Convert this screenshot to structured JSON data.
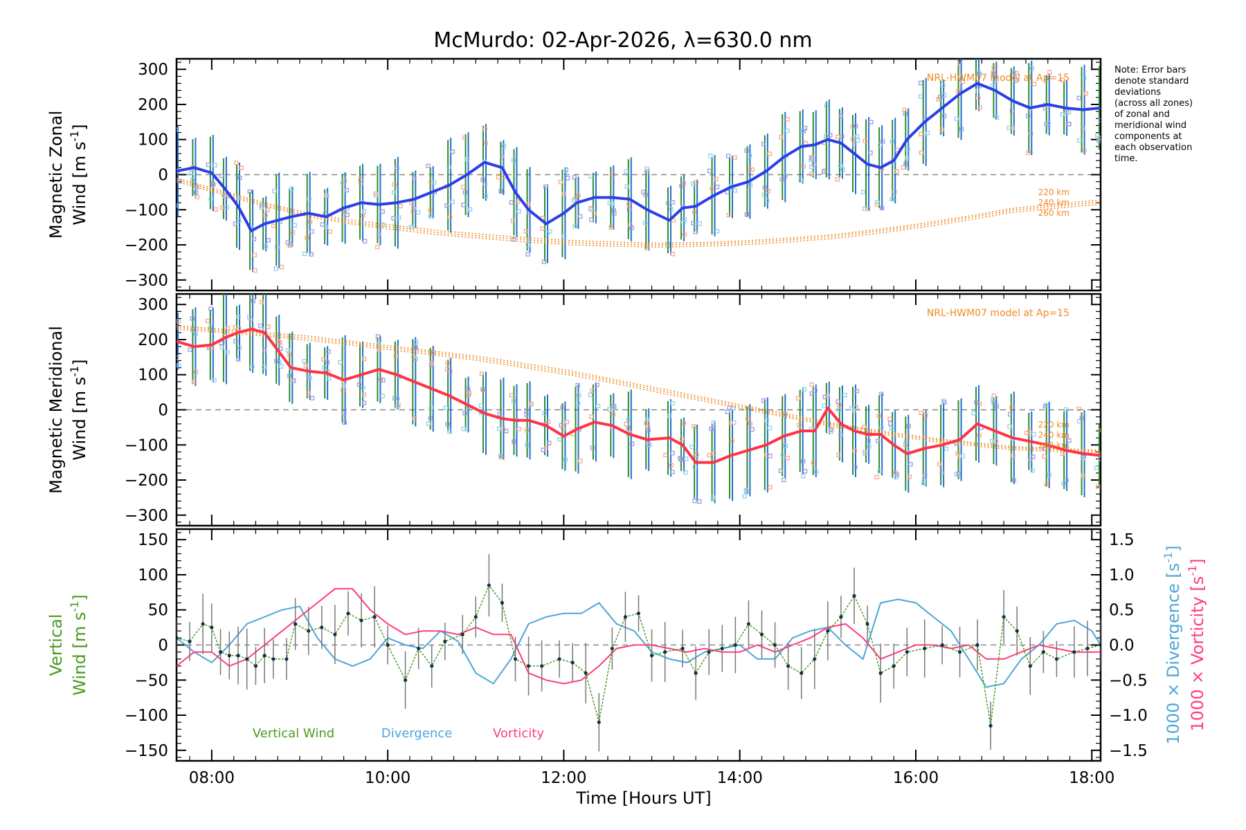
{
  "title": "McMurdo: 02-Apr-2026, λ=630.0 nm",
  "note": "Note: Error bars\ndenote standard\ndeviations\n(across all zones)\nof zonal and\nmeridional wind\ncomponents at\neach observation\ntime.",
  "xlabel": "Time [Hours UT]",
  "colors": {
    "zonal": "#2a3fe8",
    "meridional": "#ff3344",
    "model": "#f08a24",
    "vertical": "#4a9a1e",
    "divergence": "#4ba7d8",
    "vorticity": "#ff3c7d",
    "scatter": "#9a9ae0",
    "errbar_blue": "#1f6fd1",
    "errbar_green": "#2f8a2f",
    "zero": "#888888"
  },
  "chart_data": [
    {
      "type": "line",
      "name": "zonal",
      "ylabel_line1": "Magnetic Zonal",
      "ylabel_line2": "Wind [m s",
      "ylabel_sup": "-1",
      "ylabel_close": "]",
      "ylim": [
        -330,
        330
      ],
      "yticks": [
        -300,
        -200,
        -100,
        0,
        100,
        200,
        300
      ],
      "xlim": [
        7.6,
        18.1
      ],
      "xticks_labels": [
        "08:00",
        "10:00",
        "12:00",
        "14:00",
        "16:00",
        "18:00"
      ],
      "model_label": "NRL-HWM07 model at Ap=15",
      "model_heights": [
        "220 km",
        "240 km",
        "260 km"
      ],
      "series_name": "Magnetic Zonal Wind",
      "x": [
        7.6,
        7.8,
        8.0,
        8.15,
        8.3,
        8.45,
        8.6,
        8.75,
        8.9,
        9.1,
        9.3,
        9.5,
        9.7,
        9.9,
        10.1,
        10.3,
        10.5,
        10.7,
        10.9,
        11.1,
        11.3,
        11.45,
        11.6,
        11.8,
        12.0,
        12.15,
        12.35,
        12.55,
        12.75,
        12.95,
        13.2,
        13.35,
        13.5,
        13.7,
        13.9,
        14.1,
        14.3,
        14.5,
        14.7,
        14.85,
        15.0,
        15.15,
        15.3,
        15.45,
        15.6,
        15.75,
        15.9,
        16.1,
        16.3,
        16.5,
        16.7,
        16.9,
        17.1,
        17.3,
        17.5,
        17.7,
        17.9,
        18.1
      ],
      "values": [
        10,
        20,
        5,
        -40,
        -90,
        -160,
        -140,
        -130,
        -120,
        -110,
        -120,
        -95,
        -80,
        -85,
        -80,
        -70,
        -50,
        -30,
        0,
        35,
        20,
        -50,
        -100,
        -140,
        -110,
        -80,
        -65,
        -65,
        -70,
        -100,
        -130,
        -95,
        -90,
        -60,
        -35,
        -20,
        10,
        50,
        80,
        85,
        100,
        90,
        60,
        30,
        20,
        40,
        100,
        150,
        190,
        230,
        260,
        240,
        210,
        190,
        200,
        190,
        185,
        190
      ],
      "model": [
        [
          -10,
          -45,
          -80,
          -110,
          -130,
          -145,
          -160,
          -170,
          -180,
          -188,
          -192,
          -195,
          -193,
          -188,
          -180,
          -170,
          -155,
          -138,
          -118,
          -96,
          -72
        ],
        [
          -15,
          -50,
          -85,
          -115,
          -136,
          -151,
          -166,
          -176,
          -186,
          -194,
          -198,
          -200,
          -198,
          -193,
          -185,
          -175,
          -160,
          -143,
          -123,
          -101,
          -78
        ],
        [
          -20,
          -55,
          -90,
          -120,
          -141,
          -157,
          -172,
          -182,
          -192,
          -200,
          -204,
          -206,
          -204,
          -199,
          -191,
          -181,
          -166,
          -149,
          -129,
          -107,
          -84
        ]
      ],
      "model_x": [
        7.6,
        8.1,
        8.6,
        9.1,
        9.6,
        10.1,
        10.6,
        11.1,
        11.6,
        12.1,
        12.6,
        13.1,
        13.6,
        14.1,
        14.6,
        15.1,
        15.6,
        16.1,
        16.6,
        17.1,
        18.1
      ]
    },
    {
      "type": "line",
      "name": "meridional",
      "ylabel_line1": "Magnetic Meridional",
      "ylabel_line2": "Wind [m s",
      "ylabel_sup": "-1",
      "ylabel_close": "]",
      "ylim": [
        -330,
        330
      ],
      "yticks": [
        -300,
        -200,
        -100,
        0,
        100,
        200,
        300
      ],
      "xlim": [
        7.6,
        18.1
      ],
      "model_label": "NRL-HWM07 model at Ap=15",
      "model_heights": [
        "220 km",
        "240 km",
        "260 km"
      ],
      "series_name": "Magnetic Meridional Wind",
      "x": [
        7.6,
        7.8,
        8.0,
        8.15,
        8.3,
        8.45,
        8.6,
        8.75,
        8.9,
        9.1,
        9.3,
        9.5,
        9.7,
        9.9,
        10.1,
        10.3,
        10.5,
        10.7,
        10.9,
        11.1,
        11.3,
        11.45,
        11.6,
        11.8,
        12.0,
        12.15,
        12.35,
        12.55,
        12.75,
        12.95,
        13.2,
        13.35,
        13.5,
        13.7,
        13.9,
        14.1,
        14.3,
        14.5,
        14.7,
        14.85,
        15.0,
        15.15,
        15.3,
        15.45,
        15.6,
        15.75,
        15.9,
        16.1,
        16.3,
        16.5,
        16.7,
        16.9,
        17.1,
        17.3,
        17.5,
        17.7,
        17.9,
        18.1
      ],
      "values": [
        195,
        180,
        185,
        205,
        220,
        230,
        220,
        170,
        120,
        110,
        105,
        85,
        100,
        115,
        100,
        80,
        60,
        40,
        15,
        -10,
        -25,
        -30,
        -30,
        -45,
        -75,
        -55,
        -35,
        -45,
        -70,
        -85,
        -80,
        -100,
        -150,
        -150,
        -130,
        -115,
        -100,
        -75,
        -60,
        -60,
        5,
        -40,
        -60,
        -70,
        -70,
        -100,
        -125,
        -110,
        -100,
        -85,
        -40,
        -60,
        -80,
        -90,
        -100,
        -115,
        -125,
        -130
      ],
      "model": [
        [
          240,
          230,
          220,
          210,
          195,
          180,
          165,
          150,
          130,
          110,
          85,
          60,
          35,
          10,
          -15,
          -40,
          -60,
          -78,
          -92,
          -105,
          -115
        ],
        [
          235,
          225,
          215,
          204,
          190,
          175,
          160,
          144,
          124,
          104,
          80,
          54,
          30,
          5,
          -20,
          -44,
          -64,
          -82,
          -96,
          -109,
          -118
        ],
        [
          230,
          220,
          210,
          198,
          184,
          169,
          154,
          138,
          118,
          98,
          74,
          48,
          24,
          0,
          -25,
          -49,
          -69,
          -87,
          -101,
          -114,
          -122
        ]
      ],
      "model_x": [
        7.6,
        8.1,
        8.6,
        9.1,
        9.6,
        10.1,
        10.6,
        11.1,
        11.6,
        12.1,
        12.6,
        13.1,
        13.6,
        14.1,
        14.6,
        15.1,
        15.6,
        16.1,
        16.6,
        17.1,
        18.1
      ]
    },
    {
      "type": "line",
      "name": "vertical",
      "ylabel_line1": "Vertical",
      "ylabel_line2": "Wind [m s",
      "ylabel_sup": "-1",
      "ylabel_close": "]",
      "y2label_div": "1000 × Divergence [s",
      "y2label_vort": "1000 × Vorticity [s",
      "ylim": [
        -165,
        165
      ],
      "yticks": [
        -150,
        -100,
        -50,
        0,
        50,
        100,
        150
      ],
      "y2lim": [
        -1.65,
        1.65
      ],
      "y2ticks": [
        -1.5,
        -1.0,
        -0.5,
        0.0,
        0.5,
        1.0,
        1.5
      ],
      "legend": [
        "Vertical Wind",
        "Divergence",
        "Vorticity"
      ],
      "series": [
        {
          "name": "Vertical Wind",
          "x": [
            7.6,
            7.75,
            7.9,
            8.0,
            8.1,
            8.2,
            8.3,
            8.4,
            8.5,
            8.6,
            8.7,
            8.85,
            8.95,
            9.1,
            9.25,
            9.4,
            9.55,
            9.7,
            9.85,
            10.0,
            10.2,
            10.35,
            10.5,
            10.65,
            10.85,
            11.0,
            11.15,
            11.3,
            11.45,
            11.6,
            11.75,
            11.95,
            12.1,
            12.25,
            12.4,
            12.55,
            12.7,
            12.85,
            13.0,
            13.15,
            13.35,
            13.5,
            13.65,
            13.8,
            13.95,
            14.1,
            14.25,
            14.4,
            14.55,
            14.7,
            14.85,
            15.0,
            15.15,
            15.3,
            15.45,
            15.6,
            15.75,
            15.9,
            16.1,
            16.3,
            16.5,
            16.7,
            16.85,
            17.0,
            17.15,
            17.3,
            17.45,
            17.6,
            17.8,
            17.95,
            18.1
          ],
          "values": [
            10,
            5,
            30,
            25,
            -10,
            -15,
            -15,
            -20,
            -30,
            -15,
            -20,
            -20,
            30,
            20,
            25,
            15,
            45,
            35,
            40,
            0,
            -50,
            -5,
            -30,
            5,
            15,
            40,
            85,
            60,
            -20,
            -30,
            -30,
            -20,
            -25,
            -40,
            -110,
            -5,
            40,
            45,
            -15,
            -10,
            -5,
            -40,
            -10,
            -5,
            0,
            30,
            15,
            0,
            -30,
            -40,
            -20,
            20,
            40,
            70,
            30,
            -40,
            -30,
            -10,
            -5,
            0,
            -10,
            0,
            -115,
            40,
            20,
            -30,
            -10,
            -20,
            -10,
            -5,
            0
          ]
        },
        {
          "name": "Divergence",
          "x": [
            7.6,
            7.8,
            8.0,
            8.2,
            8.4,
            8.6,
            8.8,
            9.0,
            9.2,
            9.4,
            9.6,
            9.8,
            10.0,
            10.2,
            10.4,
            10.6,
            10.8,
            11.0,
            11.2,
            11.4,
            11.6,
            11.8,
            12.0,
            12.2,
            12.4,
            12.6,
            12.8,
            13.0,
            13.2,
            13.4,
            13.6,
            13.8,
            14.0,
            14.2,
            14.4,
            14.6,
            14.8,
            15.0,
            15.2,
            15.4,
            15.6,
            15.8,
            16.0,
            16.2,
            16.4,
            16.6,
            16.8,
            17.0,
            17.2,
            17.4,
            17.6,
            17.8,
            18.0,
            18.1
          ],
          "values": [
            0.1,
            -0.1,
            -0.25,
            0.0,
            0.3,
            0.4,
            0.5,
            0.55,
            0.1,
            -0.2,
            -0.3,
            -0.2,
            0.1,
            0.0,
            -0.05,
            0.2,
            0.05,
            -0.4,
            -0.55,
            -0.2,
            0.3,
            0.4,
            0.45,
            0.45,
            0.6,
            0.3,
            0.2,
            -0.1,
            -0.2,
            -0.25,
            -0.1,
            -0.05,
            0.0,
            -0.2,
            -0.2,
            0.1,
            0.2,
            0.25,
            0.0,
            -0.2,
            0.6,
            0.65,
            0.6,
            0.4,
            0.2,
            -0.2,
            -0.6,
            -0.55,
            -0.2,
            0.0,
            0.3,
            0.35,
            0.2,
            0.0
          ]
        },
        {
          "name": "Vorticity",
          "x": [
            7.6,
            7.8,
            8.0,
            8.2,
            8.4,
            8.6,
            8.8,
            9.0,
            9.2,
            9.4,
            9.6,
            9.8,
            10.0,
            10.2,
            10.4,
            10.6,
            10.8,
            11.0,
            11.2,
            11.4,
            11.6,
            11.8,
            12.0,
            12.2,
            12.4,
            12.6,
            12.8,
            13.0,
            13.2,
            13.4,
            13.6,
            13.8,
            14.0,
            14.2,
            14.4,
            14.6,
            14.8,
            15.0,
            15.2,
            15.4,
            15.6,
            15.8,
            16.0,
            16.2,
            16.4,
            16.6,
            16.8,
            17.0,
            17.2,
            17.4,
            17.6,
            17.8,
            18.0,
            18.1
          ],
          "values": [
            -0.3,
            -0.1,
            -0.1,
            -0.3,
            -0.2,
            0.0,
            0.2,
            0.4,
            0.6,
            0.8,
            0.8,
            0.5,
            0.3,
            0.15,
            0.2,
            0.2,
            0.15,
            0.25,
            0.15,
            0.15,
            -0.4,
            -0.5,
            -0.55,
            -0.5,
            -0.3,
            -0.05,
            0.0,
            0.0,
            -0.05,
            -0.1,
            -0.05,
            -0.1,
            -0.1,
            0.0,
            -0.1,
            0.0,
            0.1,
            0.25,
            0.3,
            0.1,
            -0.2,
            -0.1,
            0.0,
            0.0,
            -0.05,
            0.0,
            -0.2,
            -0.2,
            -0.1,
            0.0,
            -0.05,
            -0.1,
            -0.1,
            -0.1
          ]
        }
      ]
    }
  ]
}
